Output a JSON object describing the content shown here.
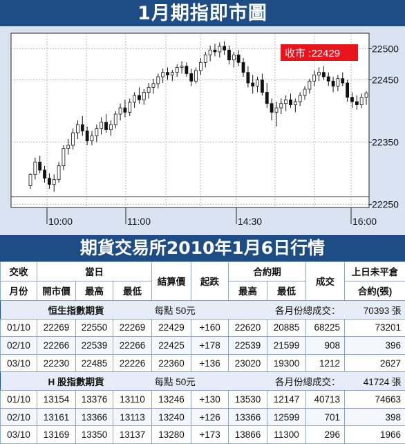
{
  "header": {
    "title": "1月期指即市圖"
  },
  "chart_data": {
    "type": "candlestick",
    "title": "1月期指即市圖",
    "x_ticks": [
      "10:00",
      "11:00",
      "14:30",
      "16:00"
    ],
    "y_ticks": [
      22500,
      22450,
      22350,
      22250
    ],
    "ylim": [
      22245,
      22525
    ],
    "grid": true,
    "close_label": "收市 :22429",
    "close": 22429,
    "ohlc": [
      [
        22280,
        22300,
        22275,
        22298
      ],
      [
        22298,
        22325,
        22290,
        22318
      ],
      [
        22318,
        22328,
        22300,
        22305
      ],
      [
        22305,
        22312,
        22285,
        22292
      ],
      [
        22292,
        22300,
        22275,
        22282
      ],
      [
        22282,
        22298,
        22270,
        22290
      ],
      [
        22290,
        22318,
        22285,
        22312
      ],
      [
        22312,
        22345,
        22305,
        22340
      ],
      [
        22340,
        22355,
        22330,
        22345
      ],
      [
        22345,
        22372,
        22338,
        22365
      ],
      [
        22365,
        22385,
        22355,
        22378
      ],
      [
        22378,
        22392,
        22360,
        22368
      ],
      [
        22368,
        22375,
        22345,
        22352
      ],
      [
        22352,
        22368,
        22345,
        22360
      ],
      [
        22360,
        22378,
        22350,
        22372
      ],
      [
        22372,
        22390,
        22362,
        22382
      ],
      [
        22382,
        22395,
        22365,
        22370
      ],
      [
        22370,
        22385,
        22360,
        22378
      ],
      [
        22378,
        22400,
        22372,
        22395
      ],
      [
        22395,
        22412,
        22385,
        22405
      ],
      [
        22405,
        22418,
        22390,
        22398
      ],
      [
        22398,
        22420,
        22392,
        22414
      ],
      [
        22414,
        22430,
        22405,
        22425
      ],
      [
        22425,
        22438,
        22412,
        22418
      ],
      [
        22418,
        22435,
        22410,
        22430
      ],
      [
        22430,
        22445,
        22420,
        22438
      ],
      [
        22438,
        22452,
        22428,
        22444
      ],
      [
        22444,
        22460,
        22436,
        22455
      ],
      [
        22455,
        22468,
        22445,
        22462
      ],
      [
        22462,
        22470,
        22450,
        22458
      ],
      [
        22458,
        22466,
        22448,
        22462
      ],
      [
        22462,
        22475,
        22455,
        22470
      ],
      [
        22470,
        22480,
        22460,
        22472
      ],
      [
        22472,
        22478,
        22455,
        22460
      ],
      [
        22460,
        22468,
        22440,
        22448
      ],
      [
        22448,
        22470,
        22444,
        22465
      ],
      [
        22465,
        22485,
        22458,
        22478
      ],
      [
        22478,
        22495,
        22470,
        22490
      ],
      [
        22490,
        22505,
        22480,
        22498
      ],
      [
        22498,
        22508,
        22488,
        22495
      ],
      [
        22495,
        22510,
        22486,
        22504
      ],
      [
        22504,
        22512,
        22490,
        22498
      ],
      [
        22498,
        22505,
        22475,
        22482
      ],
      [
        22482,
        22495,
        22470,
        22490
      ],
      [
        22490,
        22498,
        22472,
        22478
      ],
      [
        22478,
        22485,
        22455,
        22462
      ],
      [
        22462,
        22472,
        22438,
        22445
      ],
      [
        22445,
        22458,
        22428,
        22440
      ],
      [
        22440,
        22455,
        22430,
        22450
      ],
      [
        22450,
        22460,
        22425,
        22430
      ],
      [
        22430,
        22445,
        22405,
        22412
      ],
      [
        22412,
        22420,
        22385,
        22398
      ],
      [
        22398,
        22415,
        22375,
        22405
      ],
      [
        22405,
        22420,
        22395,
        22412
      ],
      [
        22412,
        22425,
        22400,
        22418
      ],
      [
        22418,
        22428,
        22405,
        22410
      ],
      [
        22410,
        22420,
        22398,
        22415
      ],
      [
        22415,
        22430,
        22408,
        22425
      ],
      [
        22425,
        22440,
        22418,
        22435
      ],
      [
        22435,
        22452,
        22428,
        22448
      ],
      [
        22448,
        22465,
        22440,
        22458
      ],
      [
        22458,
        22470,
        22448,
        22462
      ],
      [
        22462,
        22472,
        22450,
        22455
      ],
      [
        22455,
        22462,
        22440,
        22448
      ],
      [
        22448,
        22455,
        22430,
        22440
      ],
      [
        22440,
        22458,
        22432,
        22452
      ],
      [
        22452,
        22462,
        22440,
        22445
      ],
      [
        22445,
        22450,
        22415,
        22422
      ],
      [
        22422,
        22430,
        22405,
        22415
      ],
      [
        22415,
        22425,
        22402,
        22410
      ],
      [
        22410,
        22428,
        22405,
        22422
      ],
      [
        22422,
        22432,
        22410,
        22429
      ]
    ]
  },
  "table": {
    "title": "期貨交易所2010年1月6日行情",
    "headers": {
      "month_top": "交收",
      "month_bottom": "月份",
      "day": "當日",
      "open": "開市價",
      "high": "最高",
      "low": "最低",
      "settle": "結算價",
      "change": "起跌",
      "contract": "合約期",
      "c_high": "最高",
      "c_low": "最低",
      "volume": "成交",
      "oi_top": "上日未平倉",
      "oi_bottom": "合約(張)"
    },
    "sections": [
      {
        "name": "恒生指數期貨",
        "point": "每點 50元",
        "total_label": "各月份總成交：",
        "total": "70393 張",
        "rows": [
          [
            "01/10",
            "22269",
            "22550",
            "22269",
            "22429",
            "+160",
            "22620",
            "20885",
            "68225",
            "73201"
          ],
          [
            "02/10",
            "22266",
            "22539",
            "22266",
            "22425",
            "+178",
            "22539",
            "21599",
            "908",
            "396"
          ],
          [
            "03/10",
            "22230",
            "22485",
            "22226",
            "22360",
            "+136",
            "23020",
            "19300",
            "1212",
            "2627"
          ]
        ]
      },
      {
        "name": "H 股指數期貨",
        "point": "每點 50元",
        "total_label": "各月份總成交：",
        "total": "41724 張",
        "rows": [
          [
            "01/10",
            "13154",
            "13376",
            "13110",
            "13246",
            "+130",
            "13530",
            "12147",
            "40713",
            "74663"
          ],
          [
            "02/10",
            "13161",
            "13366",
            "13113",
            "13240",
            "+126",
            "13366",
            "12599",
            "701",
            "398"
          ],
          [
            "03/10",
            "13169",
            "13350",
            "13137",
            "13280",
            "+173",
            "13866",
            "11300",
            "296",
            "1966"
          ]
        ]
      }
    ]
  },
  "colors": {
    "banner": "#1e4d86",
    "panel": "#d9e3f2",
    "plot": "#ffffff",
    "close_tag": "#e8141b"
  }
}
